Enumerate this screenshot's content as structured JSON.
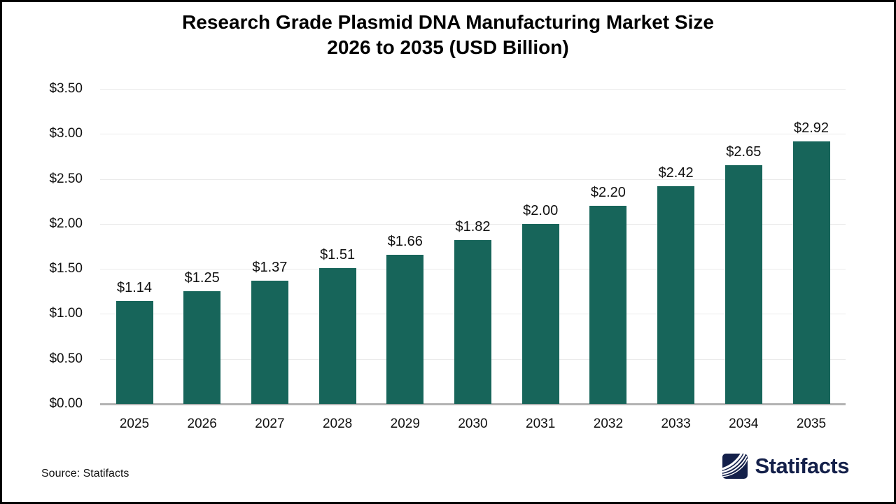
{
  "title": {
    "line1": "Research Grade Plasmid DNA Manufacturing Market Size",
    "line2": "2026 to 2035 (USD Billion)"
  },
  "source": {
    "label": "Source: Statifacts"
  },
  "brand": {
    "name": "Statifacts",
    "icon": "statifacts-waves-icon"
  },
  "colors": {
    "bar": "#17655A",
    "gridline": "#EBEBEB",
    "axis_line": "#B3B3B3",
    "title_text": "#000000",
    "label_text": "#111111",
    "brand_navy": "#14204A"
  },
  "chart_data": {
    "type": "bar",
    "title": "Research Grade Plasmid DNA Manufacturing Market Size 2026 to 2035 (USD Billion)",
    "categories": [
      "2025",
      "2026",
      "2027",
      "2028",
      "2029",
      "2030",
      "2031",
      "2032",
      "2033",
      "2034",
      "2035"
    ],
    "values": [
      1.14,
      1.25,
      1.37,
      1.51,
      1.66,
      1.82,
      2.0,
      2.2,
      2.42,
      2.65,
      2.92
    ],
    "value_labels": [
      "$1.14",
      "$1.25",
      "$1.37",
      "$1.51",
      "$1.66",
      "$1.82",
      "$2.00",
      "$2.20",
      "$2.42",
      "$2.65",
      "$2.92"
    ],
    "xlabel": "",
    "ylabel": "",
    "ylim": [
      0,
      3.5
    ],
    "ytick_values": [
      0,
      0.5,
      1.0,
      1.5,
      2.0,
      2.5,
      3.0,
      3.5
    ],
    "ytick_labels": [
      "$0.00",
      "$0.50",
      "$1.00",
      "$1.50",
      "$2.00",
      "$2.50",
      "$3.00",
      "$3.50"
    ],
    "grid": true,
    "legend": false
  }
}
